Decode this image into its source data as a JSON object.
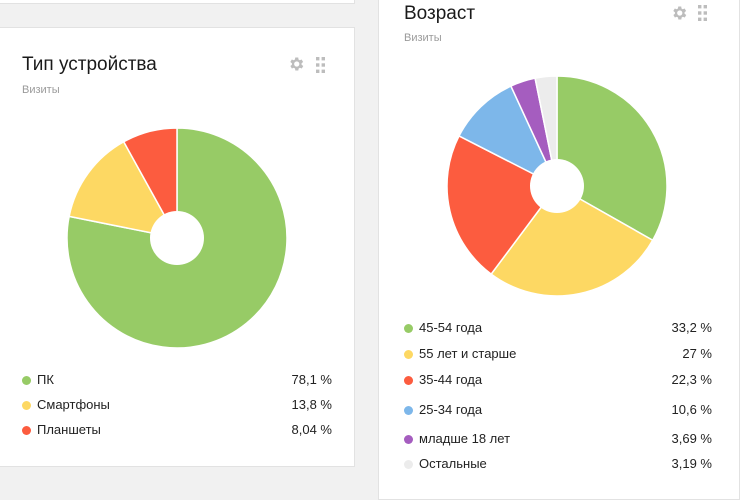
{
  "device_card": {
    "title": "Тип устройства",
    "subtitle": "Визиты",
    "legend": [
      {
        "label": "ПК",
        "value": "78,1 %",
        "color": "#97cb66"
      },
      {
        "label": "Смартфоны",
        "value": "13,8 %",
        "color": "#fdd863"
      },
      {
        "label": "Планшеты",
        "value": "8,04 %",
        "color": "#fc5c3f"
      }
    ]
  },
  "age_card": {
    "title": "Возраст",
    "subtitle": "Визиты",
    "legend": [
      {
        "label": "45-54 года",
        "value": "33,2 %",
        "color": "#97cb66"
      },
      {
        "label": "55 лет и старше",
        "value": "27 %",
        "color": "#fdd863"
      },
      {
        "label": "35-44 года",
        "value": "22,3 %",
        "color": "#fc5c3f"
      },
      {
        "label": "25-34 года",
        "value": "10,6 %",
        "color": "#7db7ea"
      },
      {
        "label": "младше 18 лет",
        "value": "3,69 %",
        "color": "#a55dbf"
      },
      {
        "label": "Остальные",
        "value": "3,19 %",
        "color": "#ececec"
      }
    ]
  },
  "chart_data": [
    {
      "type": "pie",
      "title": "Тип устройства",
      "categories": [
        "ПК",
        "Смартфоны",
        "Планшеты"
      ],
      "values": [
        78.1,
        13.8,
        8.04
      ],
      "colors": [
        "#97cb66",
        "#fdd863",
        "#fc5c3f"
      ]
    },
    {
      "type": "pie",
      "title": "Возраст",
      "categories": [
        "45-54 года",
        "55 лет и старше",
        "35-44 года",
        "25-34 года",
        "младше 18 лет",
        "Остальные"
      ],
      "values": [
        33.2,
        27,
        22.3,
        10.6,
        3.69,
        3.19
      ],
      "colors": [
        "#97cb66",
        "#fdd863",
        "#fc5c3f",
        "#7db7ea",
        "#a55dbf",
        "#ececec"
      ]
    }
  ]
}
